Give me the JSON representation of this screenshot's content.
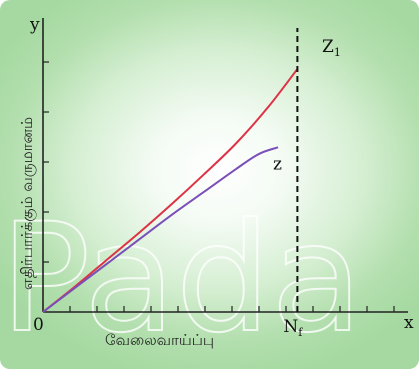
{
  "chart_data": {
    "type": "line",
    "title": "",
    "x_axis": {
      "letter": "x",
      "label": "வேலைவாய்ப்பு",
      "origin_label": "0",
      "marker_label": "N",
      "marker_subscript": "f",
      "range": [
        0,
        10
      ]
    },
    "y_axis": {
      "letter": "y",
      "label": "எதிர்பார்க்கும் வருமானம்",
      "range": [
        0,
        10
      ]
    },
    "vertical_line": {
      "x": 7.9,
      "style": "dashed"
    },
    "series": [
      {
        "name": "Z",
        "label_main": "Z",
        "label_sub": "1",
        "color": "#dd3344",
        "x": [
          0,
          1,
          2,
          3,
          4,
          5,
          6,
          7,
          7.9
        ],
        "y": [
          0,
          0.95,
          1.95,
          2.95,
          4.0,
          5.1,
          6.25,
          7.6,
          9.0
        ]
      },
      {
        "name": "z",
        "label_main": "z",
        "label_sub": "",
        "color": "#7a4fb8",
        "x": [
          0,
          1,
          2,
          3,
          4,
          5,
          6,
          6.7,
          7.3
        ],
        "y": [
          0,
          0.9,
          1.8,
          2.7,
          3.6,
          4.45,
          5.3,
          5.85,
          6.1
        ]
      }
    ]
  },
  "watermark": "Pada"
}
